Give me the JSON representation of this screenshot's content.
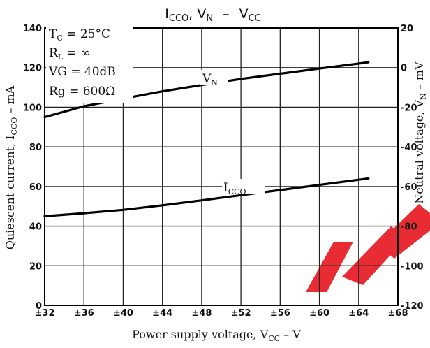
{
  "chart_data": {
    "type": "line",
    "title": {
      "left_base": "I",
      "left_sub": "CCO",
      "mid": ", V",
      "mid_sub": "N",
      "dash": "–",
      "right_base": "V",
      "right_sub": "CC"
    },
    "xlabel": {
      "base": "Power supply voltage, V",
      "sub": "CC",
      "unit": " – V"
    },
    "ylabel_left": {
      "base": "Quiescent current, I",
      "sub": "CCO",
      "unit": " – mA"
    },
    "ylabel_right": {
      "base": "Neutral voltage, V",
      "sub": "N",
      "unit": " – mV"
    },
    "x_ticks": [
      "±32",
      "±36",
      "±40",
      "±44",
      "±48",
      "±52",
      "±56",
      "±60",
      "±64",
      "±68"
    ],
    "y_left_ticks": [
      "0",
      "20",
      "40",
      "60",
      "80",
      "100",
      "120",
      "140"
    ],
    "y_right_ticks": [
      "-120",
      "-100",
      "-80",
      "-60",
      "-40",
      "-20",
      "0",
      "20"
    ],
    "xlim": [
      32,
      68
    ],
    "ylim_left": [
      0,
      140
    ],
    "ylim_right": [
      -120,
      20
    ],
    "grid": true,
    "conditions": [
      {
        "base": "T",
        "sub": "C",
        "rest": " = 25°C"
      },
      {
        "base": "R",
        "sub": "L",
        "rest": " = ∞"
      },
      {
        "base": "VG = 40dB",
        "sub": "",
        "rest": ""
      },
      {
        "base": "Rg = 600Ω",
        "sub": "",
        "rest": ""
      }
    ],
    "series": [
      {
        "name": "I",
        "name_sub": "CCO",
        "axis": "left",
        "color": "#000000",
        "x": [
          32,
          36,
          40,
          44,
          48,
          52,
          56,
          60,
          64,
          65
        ],
        "y": [
          45,
          46.5,
          48.2,
          50.5,
          53,
          55.6,
          58.2,
          60.8,
          63.4,
          64
        ]
      },
      {
        "name": "V",
        "name_sub": "N",
        "axis": "right",
        "color": "#000000",
        "x": [
          32,
          36,
          40,
          44,
          48,
          52,
          56,
          60,
          64,
          65
        ],
        "y": [
          -25,
          -19.5,
          -15.7,
          -12,
          -8.8,
          -5.7,
          -3.1,
          -0.5,
          2,
          2.7
        ]
      }
    ],
    "watermark_color": "#e8202a"
  }
}
